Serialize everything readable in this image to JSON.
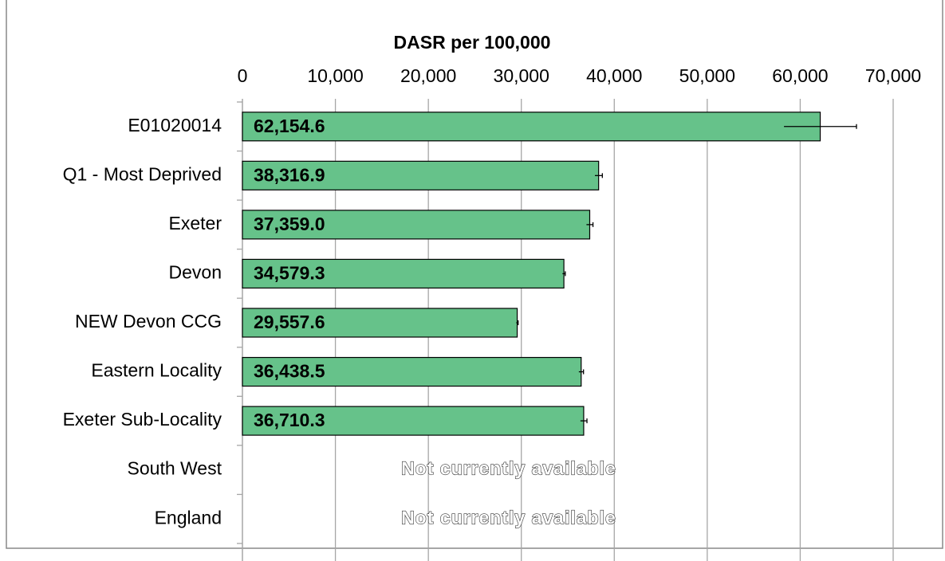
{
  "chart_data": {
    "type": "hbar",
    "xlabel": "DASR per 100,000",
    "categories": [
      "E01020014",
      "Q1 - Most Deprived",
      "Exeter",
      "Devon",
      "NEW Devon CCG",
      "Eastern Locality",
      "Exeter Sub-Locality",
      "South West",
      "England"
    ],
    "values": [
      62154.6,
      38316.9,
      37359.0,
      34579.3,
      29557.6,
      36438.5,
      36710.3,
      null,
      null
    ],
    "value_labels": [
      "62,154.6",
      "38,316.9",
      "37,359.0",
      "34,579.3",
      "29,557.6",
      "36,438.5",
      "36,710.3",
      "Not currently available",
      "Not currently available"
    ],
    "errors": [
      3900,
      400,
      350,
      150,
      100,
      250,
      350,
      null,
      null
    ],
    "color": "#66c28a",
    "xlim": [
      0,
      70000
    ],
    "xticks": [
      0,
      {
        "value": 10000,
        "label": "10,000"
      },
      {
        "value": 20000,
        "label": "20,000"
      },
      {
        "value": 30000,
        "label": "30,000"
      },
      {
        "value": 40000,
        "label": "40,000"
      },
      {
        "value": 50000,
        "label": "50,000"
      },
      {
        "value": 60000,
        "label": "60,000"
      },
      {
        "value": 70000,
        "label": "70,000"
      }
    ],
    "grid": true
  }
}
